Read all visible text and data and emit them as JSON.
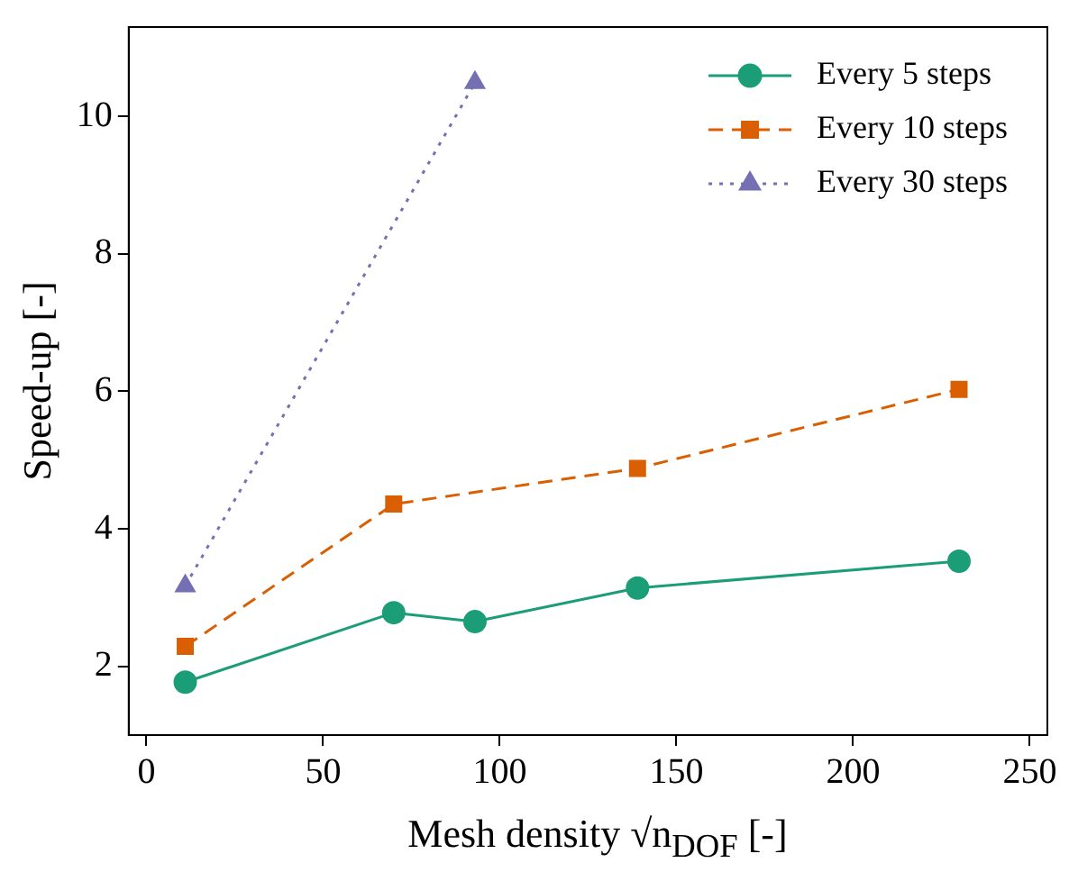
{
  "chart_data": {
    "type": "line",
    "xlabel": "Mesh density √n$_{DOF}$ [-]",
    "ylabel": "Speed-up [-]",
    "xlim": [
      -5,
      255
    ],
    "xticks": [
      0,
      50,
      100,
      150,
      200,
      250
    ],
    "ylim": [
      1,
      11.3
    ],
    "yticks": [
      2,
      4,
      6,
      8,
      10
    ],
    "grid": false,
    "legend": "top right",
    "series": [
      {
        "name": "Every 5 steps",
        "color": "#1b9e77",
        "marker": "circle",
        "line_style": "solid",
        "x": [
          11,
          70,
          93,
          139,
          230
        ],
        "values": [
          1.77,
          2.78,
          2.65,
          3.14,
          3.53
        ]
      },
      {
        "name": "Every 10 steps",
        "color": "#d95f02",
        "marker": "square",
        "line_style": "dashed",
        "x": [
          11,
          70,
          139,
          230
        ],
        "values": [
          2.29,
          4.36,
          4.88,
          6.03
        ]
      },
      {
        "name": "Every 30 steps",
        "color": "#7570b3",
        "marker": "triangle",
        "line_style": "dotted",
        "x": [
          11,
          93
        ],
        "values": [
          3.17,
          10.49
        ]
      }
    ]
  }
}
